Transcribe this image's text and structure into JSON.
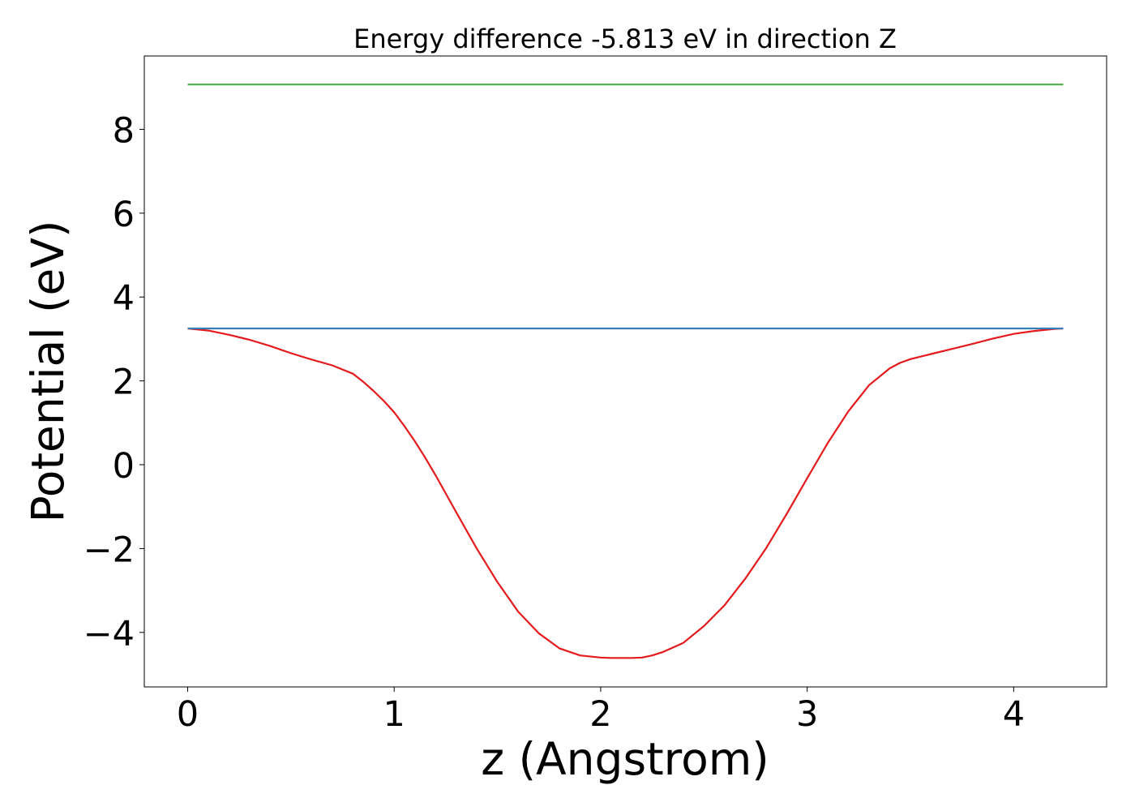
{
  "chart_data": {
    "type": "line",
    "title": "Energy difference -5.813 eV in direction Z",
    "xlabel": "z (Angstrom)",
    "ylabel": "Potential (eV)",
    "xlim": [
      -0.21,
      4.45
    ],
    "ylim": [
      -5.3,
      9.75
    ],
    "xticks": [
      0,
      1,
      2,
      3,
      4
    ],
    "xtick_labels": [
      "0",
      "1",
      "2",
      "3",
      "4"
    ],
    "yticks": [
      -4,
      -2,
      0,
      2,
      4,
      6,
      8
    ],
    "ytick_labels": [
      "−4",
      "−2",
      "0",
      "2",
      "4",
      "6",
      "8"
    ],
    "grid": false,
    "series": [
      {
        "color": "#e41a1c",
        "x": [
          0.0,
          0.1,
          0.2,
          0.3,
          0.4,
          0.5,
          0.6,
          0.7,
          0.8,
          0.85,
          0.9,
          0.95,
          1.0,
          1.05,
          1.1,
          1.15,
          1.2,
          1.3,
          1.4,
          1.5,
          1.6,
          1.7,
          1.8,
          1.9,
          2.0,
          2.05,
          2.1,
          2.15,
          2.2,
          2.25,
          2.3,
          2.4,
          2.5,
          2.6,
          2.7,
          2.8,
          2.9,
          3.0,
          3.1,
          3.2,
          3.3,
          3.4,
          3.45,
          3.5,
          3.6,
          3.7,
          3.8,
          3.9,
          4.0,
          4.1,
          4.2,
          4.24
        ],
        "y": [
          3.25,
          3.2,
          3.1,
          2.98,
          2.83,
          2.66,
          2.51,
          2.37,
          2.17,
          1.98,
          1.76,
          1.52,
          1.25,
          0.92,
          0.56,
          0.17,
          -0.25,
          -1.13,
          -2.0,
          -2.8,
          -3.5,
          -4.02,
          -4.38,
          -4.55,
          -4.6,
          -4.61,
          -4.61,
          -4.61,
          -4.6,
          -4.55,
          -4.47,
          -4.25,
          -3.85,
          -3.35,
          -2.72,
          -2.0,
          -1.18,
          -0.32,
          0.52,
          1.28,
          1.9,
          2.3,
          2.43,
          2.52,
          2.64,
          2.76,
          2.88,
          3.01,
          3.12,
          3.19,
          3.24,
          3.25
        ]
      },
      {
        "color": "#377eb8",
        "x": [
          0.0,
          4.24
        ],
        "y": [
          3.25,
          3.25
        ]
      },
      {
        "color": "#4daf4a",
        "x": [
          0.0,
          4.24
        ],
        "y": [
          9.07,
          9.07
        ]
      }
    ]
  }
}
